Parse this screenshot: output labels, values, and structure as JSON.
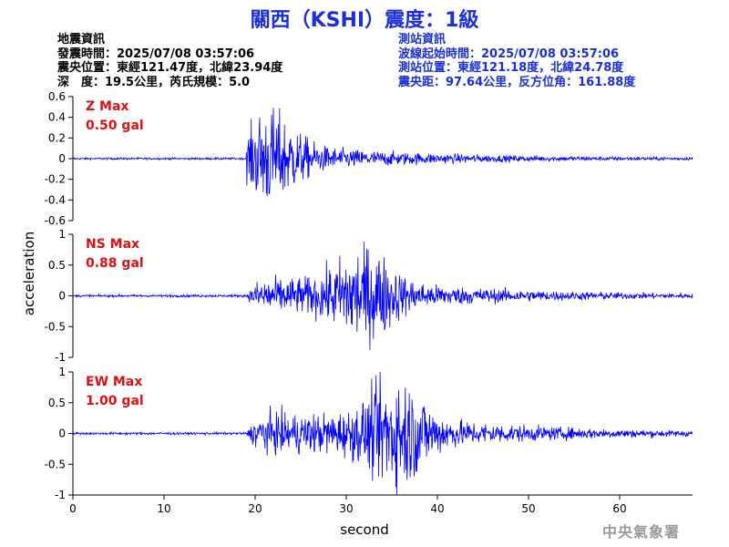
{
  "title": "關西（KSHI）震度：1級",
  "quake_info": {
    "heading": "地震資訊",
    "time": "發震時間：2025/07/08 03:57:06",
    "epicenter": "震央位置：東經121.47度，北緯23.94度",
    "depth_magnitude": "深　度：19.5公里，芮氏規模：5.0"
  },
  "station_info": {
    "heading": "測站資訊",
    "wave_start": "波線起始時間：2025/07/08 03:57:06",
    "location": "測站位置：東經121.18度，北緯24.78度",
    "distance": "震央距：97.64公里，反方位角：161.88度"
  },
  "footer": "中央氣象署",
  "colors": {
    "title": "#1a2fd6",
    "trace": "#0000ff",
    "max_label": "#e01010"
  },
  "chart_data": [
    {
      "type": "line",
      "name": "Z",
      "max_label": [
        "Z Max",
        "0.50 gal"
      ],
      "ylim": [
        -0.6,
        0.6
      ],
      "yticks": [
        "0.6",
        "0.4",
        "0.2",
        "0",
        "-0.2",
        "-0.4",
        "-0.6"
      ],
      "xlim": [
        0,
        68
      ],
      "onset_s": 19,
      "peak_s": 21.5,
      "pre_noise": 0.01,
      "peak": 0.5
    },
    {
      "type": "line",
      "name": "NS",
      "max_label": [
        "NS Max",
        "0.88 gal"
      ],
      "ylim": [
        -1,
        1
      ],
      "yticks": [
        "1",
        "0.5",
        "0",
        "-0.5",
        "-1"
      ],
      "xlim": [
        0,
        68
      ],
      "onset_s": 19,
      "peak_s": 32,
      "pre_noise": 0.02,
      "peak": 0.88
    },
    {
      "type": "line",
      "name": "EW",
      "max_label": [
        "EW Max",
        "1.00 gal"
      ],
      "ylim": [
        -1,
        1
      ],
      "yticks": [
        "1",
        "0.5",
        "0",
        "-0.5",
        "-1"
      ],
      "xlim": [
        0,
        68
      ],
      "xticks": [
        0,
        10,
        20,
        30,
        40,
        50,
        60
      ],
      "xlabel": "second",
      "onset_s": 19,
      "peak_s": 35.5,
      "pre_noise": 0.02,
      "peak": 1.0
    }
  ],
  "ylabel": "acceleration",
  "xlabel": "second"
}
